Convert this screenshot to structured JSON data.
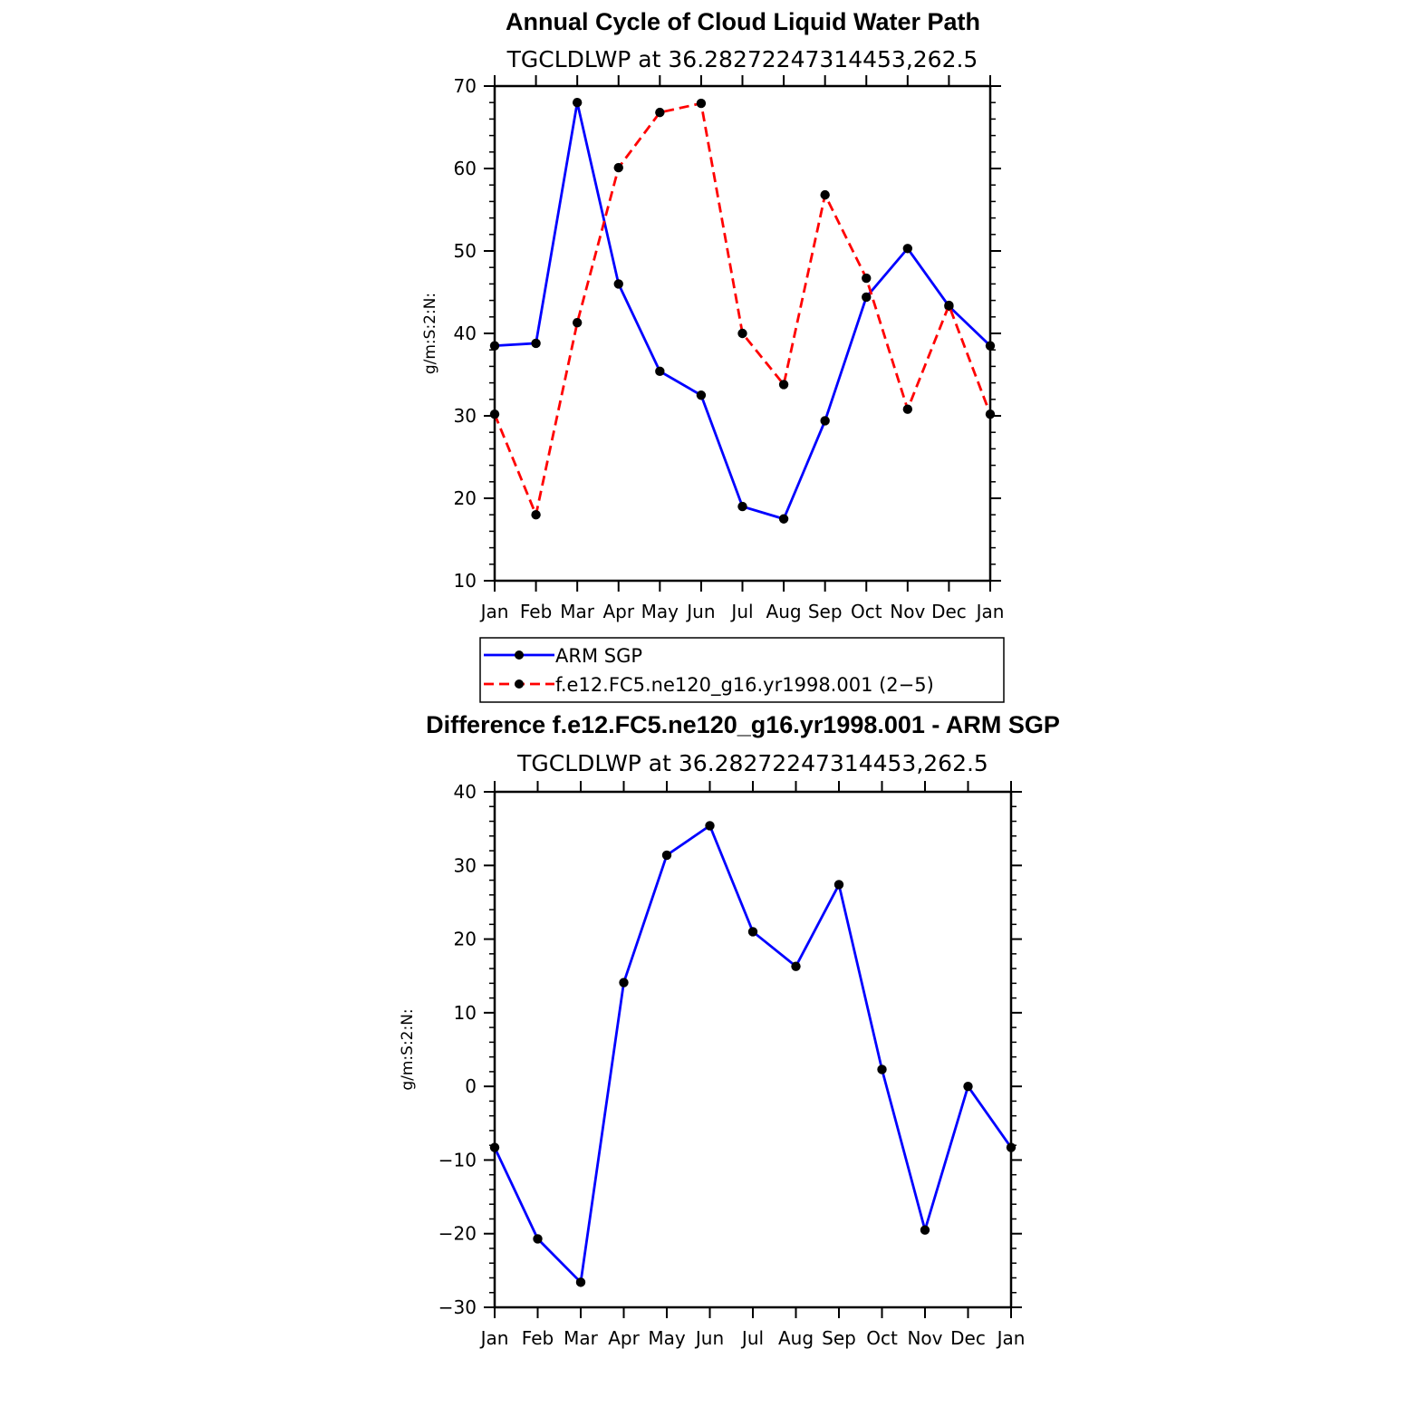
{
  "chart_data": [
    {
      "type": "line",
      "title": "Annual Cycle of Cloud Liquid Water Path",
      "subtitle": "TGCLDLWP  at  36.28272247314453,262.5",
      "xlabel": "",
      "ylabel": "g/m:S:2:N:",
      "categories": [
        "Jan",
        "Feb",
        "Mar",
        "Apr",
        "May",
        "Jun",
        "Jul",
        "Aug",
        "Sep",
        "Oct",
        "Nov",
        "Dec",
        "Jan"
      ],
      "ylim": [
        10,
        70
      ],
      "yticks": [
        "10",
        "20",
        "30",
        "40",
        "50",
        "60",
        "70"
      ],
      "grid": false,
      "legend_position": "bottom",
      "series": [
        {
          "name": "ARM SGP",
          "color": "#0000ff",
          "dash": "solid",
          "values": [
            38.5,
            38.8,
            68.0,
            46.0,
            35.4,
            32.5,
            19.0,
            17.5,
            29.4,
            44.4,
            50.3,
            43.3,
            38.5
          ]
        },
        {
          "name": "f.e12.FC5.ne120_g16.yr1998.001 (2−5)",
          "color": "#ff0000",
          "dash": "dashed",
          "values": [
            30.2,
            18.0,
            41.3,
            60.1,
            66.8,
            67.9,
            40.0,
            33.8,
            56.8,
            46.7,
            30.8,
            43.4,
            30.2
          ]
        }
      ]
    },
    {
      "type": "line",
      "title": "Difference f.e12.FC5.ne120_g16.yr1998.001 - ARM SGP",
      "subtitle": "TGCLDLWP  at  36.28272247314453,262.5",
      "xlabel": "",
      "ylabel": "g/m:S:2:N:",
      "categories": [
        "Jan",
        "Feb",
        "Mar",
        "Apr",
        "May",
        "Jun",
        "Jul",
        "Aug",
        "Sep",
        "Oct",
        "Nov",
        "Dec",
        "Jan"
      ],
      "ylim": [
        -30,
        40
      ],
      "yticks": [
        "−30",
        "−20",
        "−10",
        "0",
        "10",
        "20",
        "30",
        "40"
      ],
      "grid": false,
      "series": [
        {
          "color": "#0000ff",
          "dash": "solid",
          "values": [
            -8.3,
            -20.7,
            -26.6,
            14.1,
            31.4,
            35.4,
            21.0,
            16.3,
            27.4,
            2.3,
            -19.5,
            0.0,
            -8.3
          ]
        }
      ]
    }
  ]
}
